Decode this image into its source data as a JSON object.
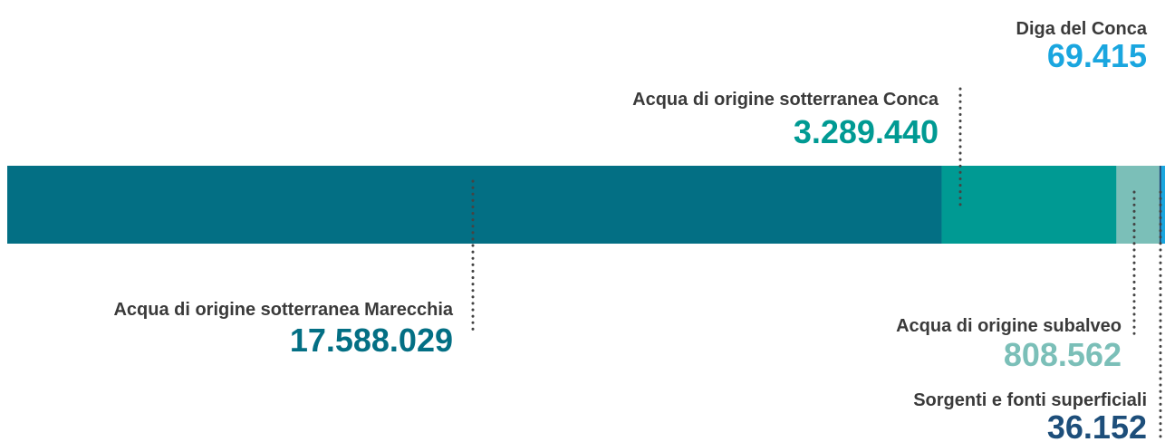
{
  "chart_data": {
    "type": "stacked-bar",
    "series": [
      {
        "name": "Acqua di origine sotterranea Marecchia",
        "color": "#036f84",
        "values": [
          17588029
        ],
        "value_labels": [
          "17.588.029"
        ]
      },
      {
        "name": "Acqua di origine sotterranea Conca",
        "color": "#009a93",
        "values": [
          3289440
        ],
        "value_labels": [
          "3.289.440"
        ]
      },
      {
        "name": "Acqua di origine subalveo",
        "color": "#7bbfb8",
        "values": [
          808562
        ],
        "value_labels": [
          "808.562"
        ]
      },
      {
        "name": "Sorgenti e fonti superficiali",
        "color": "#1d4e7a",
        "values": [
          36152
        ],
        "value_labels": [
          "36.152"
        ]
      },
      {
        "name": "Diga del Conca",
        "color": "#1aa6df",
        "values": [
          69415
        ],
        "value_labels": [
          "69.415"
        ]
      }
    ]
  }
}
